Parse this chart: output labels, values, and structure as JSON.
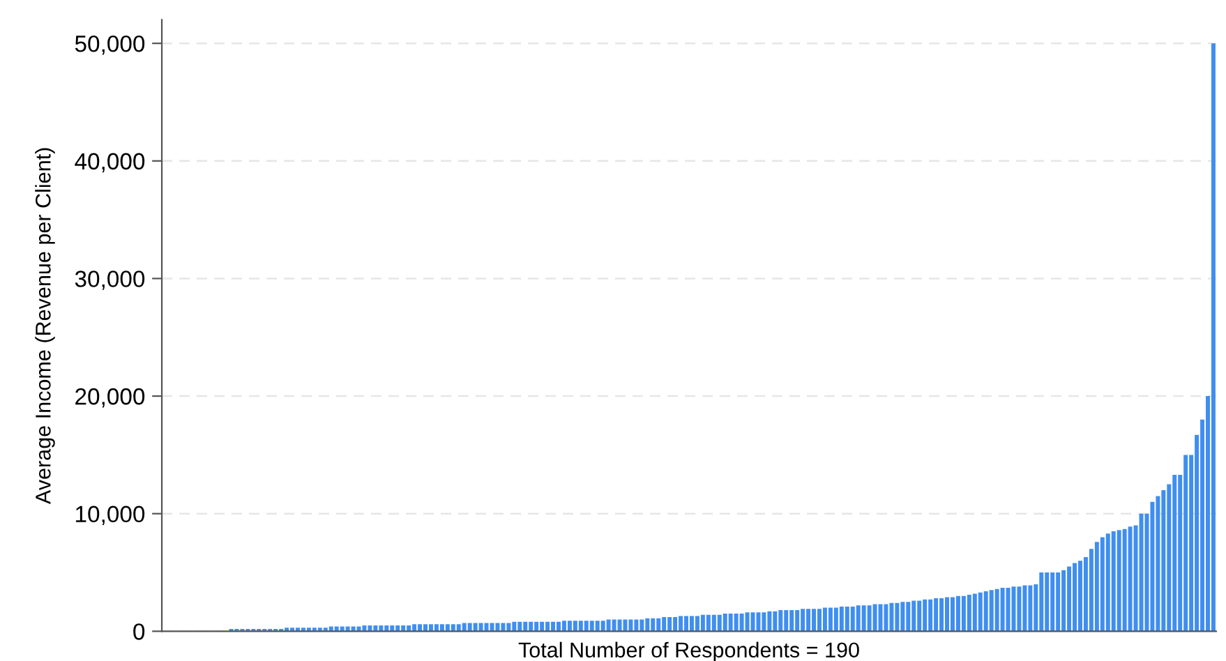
{
  "chart_data": {
    "type": "bar",
    "xlabel": "Total Number of Respondents = 190",
    "ylabel": "Average Income (Revenue per Client)",
    "categories": [
      null,
      null,
      null,
      null,
      null,
      null,
      null,
      null,
      null,
      null,
      null,
      null,
      null,
      null,
      null,
      null,
      null,
      null,
      null,
      null,
      null,
      null,
      null,
      null,
      null,
      null,
      null,
      null,
      null,
      null,
      null,
      null,
      null,
      null,
      null,
      null,
      null,
      null,
      null,
      null,
      null,
      null,
      null,
      null,
      null,
      null,
      null,
      null,
      null,
      null,
      null,
      null,
      null,
      null,
      null,
      null,
      null,
      null,
      null,
      null,
      null,
      null,
      null,
      null,
      null,
      null,
      null,
      null,
      null,
      null,
      null,
      null,
      null,
      null,
      null,
      null,
      null,
      null,
      null,
      null,
      null,
      null,
      null,
      null,
      null,
      null,
      null,
      null,
      null,
      null,
      null,
      null,
      null,
      null,
      null,
      null,
      null,
      null,
      null,
      null,
      null,
      null,
      null,
      null,
      null,
      null,
      null,
      null,
      null,
      null,
      null,
      null,
      null,
      null,
      null,
      null,
      null,
      null,
      null,
      null,
      null,
      null,
      null,
      null,
      null,
      null,
      null,
      null,
      null,
      null,
      null,
      null,
      null,
      null,
      null,
      null,
      null,
      null,
      null,
      null,
      null,
      null,
      null,
      null,
      null,
      null,
      null,
      null,
      null,
      null,
      null,
      null,
      null,
      null,
      null,
      null,
      null,
      null,
      null,
      null,
      null,
      null,
      null,
      null,
      null,
      null,
      null,
      null,
      null,
      null,
      null,
      null,
      null,
      null,
      null,
      null,
      null,
      null,
      null,
      null,
      null,
      null,
      null,
      null,
      null,
      null,
      null,
      null,
      null,
      null
    ],
    "values": [
      0,
      0,
      0,
      0,
      0,
      0,
      0,
      0,
      0,
      0,
      0,
      0,
      200,
      200,
      200,
      200,
      200,
      200,
      200,
      200,
      200,
      200,
      300,
      300,
      300,
      300,
      300,
      300,
      300,
      300,
      400,
      400,
      400,
      400,
      400,
      400,
      500,
      500,
      500,
      500,
      500,
      500,
      500,
      500,
      500,
      600,
      600,
      600,
      600,
      600,
      600,
      600,
      600,
      600,
      700,
      700,
      700,
      700,
      700,
      700,
      700,
      700,
      700,
      800,
      800,
      800,
      800,
      800,
      800,
      800,
      800,
      800,
      900,
      900,
      900,
      900,
      900,
      900,
      900,
      900,
      1000,
      1000,
      1000,
      1000,
      1000,
      1000,
      1000,
      1100,
      1100,
      1100,
      1200,
      1200,
      1200,
      1300,
      1300,
      1300,
      1300,
      1400,
      1400,
      1400,
      1400,
      1500,
      1500,
      1500,
      1500,
      1600,
      1600,
      1600,
      1600,
      1700,
      1700,
      1800,
      1800,
      1800,
      1800,
      1900,
      1900,
      1900,
      1900,
      2000,
      2000,
      2000,
      2100,
      2100,
      2100,
      2200,
      2200,
      2200,
      2300,
      2300,
      2300,
      2400,
      2400,
      2500,
      2500,
      2600,
      2600,
      2700,
      2700,
      2800,
      2800,
      2900,
      2900,
      3000,
      3000,
      3100,
      3200,
      3300,
      3400,
      3500,
      3600,
      3700,
      3700,
      3800,
      3800,
      3900,
      3900,
      4000,
      5000,
      5000,
      5000,
      5000,
      5200,
      5500,
      5800,
      6000,
      6300,
      7000,
      7600,
      8000,
      8300,
      8500,
      8600,
      8700,
      8900,
      9000,
      10000,
      10000,
      11000,
      11500,
      12000,
      12500,
      13300,
      13300,
      15000,
      15000,
      16700,
      18000,
      20000,
      50000
    ],
    "color": "#3f8ef0",
    "ylim": [
      0,
      52000
    ],
    "yticks": [
      {
        "value": 0,
        "label": "0"
      },
      {
        "value": 10000,
        "label": "10,000"
      },
      {
        "value": 20000,
        "label": "20,000"
      },
      {
        "value": 30000,
        "label": "30,000"
      },
      {
        "value": 40000,
        "label": "40,000"
      },
      {
        "value": 50000,
        "label": "50,000"
      }
    ],
    "grid": "y"
  }
}
